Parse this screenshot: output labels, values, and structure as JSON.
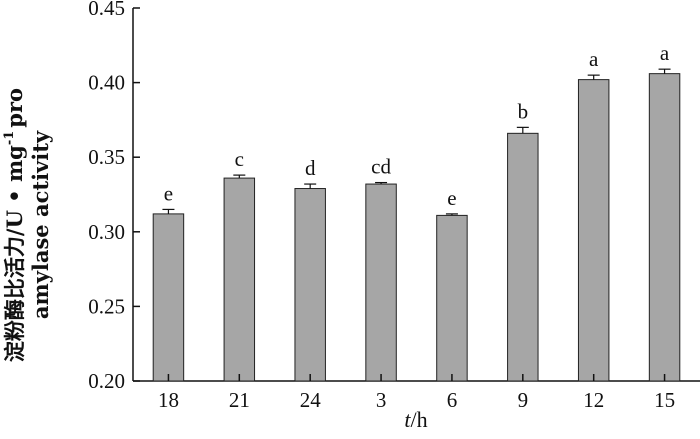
{
  "chart_data": {
    "type": "bar",
    "categories": [
      "18",
      "21",
      "24",
      "3",
      "6",
      "9",
      "12",
      "15"
    ],
    "values": [
      0.312,
      0.336,
      0.329,
      0.332,
      0.311,
      0.366,
      0.402,
      0.406
    ],
    "errors": [
      0.003,
      0.002,
      0.003,
      0.001,
      0.001,
      0.004,
      0.003,
      0.003
    ],
    "significance_labels": [
      "e",
      "c",
      "d",
      "cd",
      "e",
      "b",
      "a",
      "a"
    ],
    "xlabel": {
      "italic": "t",
      "unit": "/h"
    },
    "ylabel": {
      "line1": "淀粉酶比活力/U • mg",
      "line1_sup": "-1",
      "line1_tail": "pro",
      "line2": "amylase activity"
    },
    "ylim": [
      0.2,
      0.45
    ],
    "yticks": [
      "0.20",
      "0.25",
      "0.30",
      "0.35",
      "0.40",
      "0.45"
    ],
    "ytick_values": [
      0.2,
      0.25,
      0.3,
      0.35,
      0.4,
      0.45
    ],
    "bar_color": "#a6a6a6",
    "bar_edge_color": "#222222",
    "axis_color": "#111111",
    "grid": false,
    "legend": "none"
  }
}
